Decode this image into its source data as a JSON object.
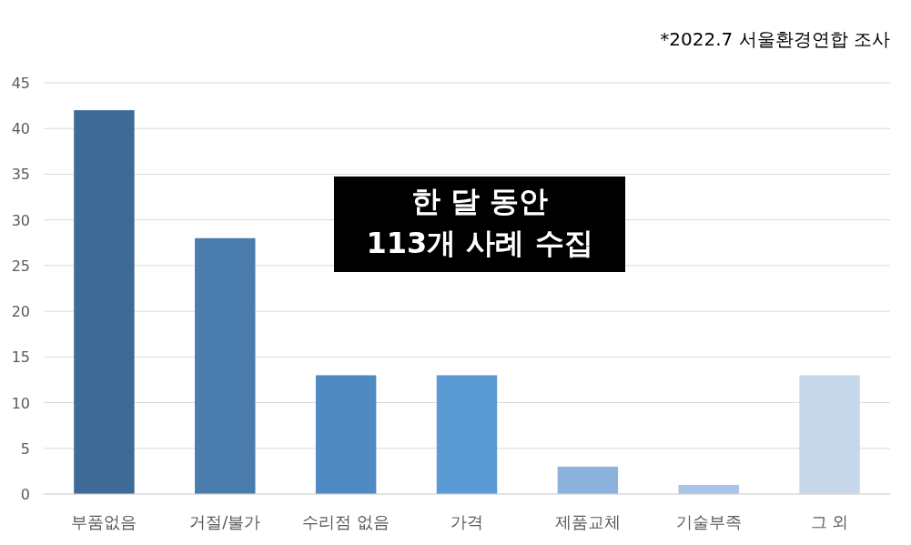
{
  "chart_data": {
    "type": "bar",
    "categories": [
      "부품없음",
      "거절/불가",
      "수리점 없음",
      "가격",
      "제품교체",
      "기술부족",
      "그 외"
    ],
    "values": [
      42,
      28,
      13,
      13,
      3,
      1,
      13
    ],
    "colors": [
      "#3e6a96",
      "#4a7cae",
      "#508ac2",
      "#5b9bd5",
      "#8db2de",
      "#a9c4e6",
      "#c6d7ea"
    ],
    "ylim": [
      0,
      45
    ],
    "yticks": [
      0,
      5,
      10,
      15,
      20,
      25,
      30,
      35,
      40,
      45
    ],
    "grid": "y",
    "annotations": [
      "*2022.7 서울환경연합 조사",
      "한 달 동안\n113개 사례 수집"
    ]
  }
}
